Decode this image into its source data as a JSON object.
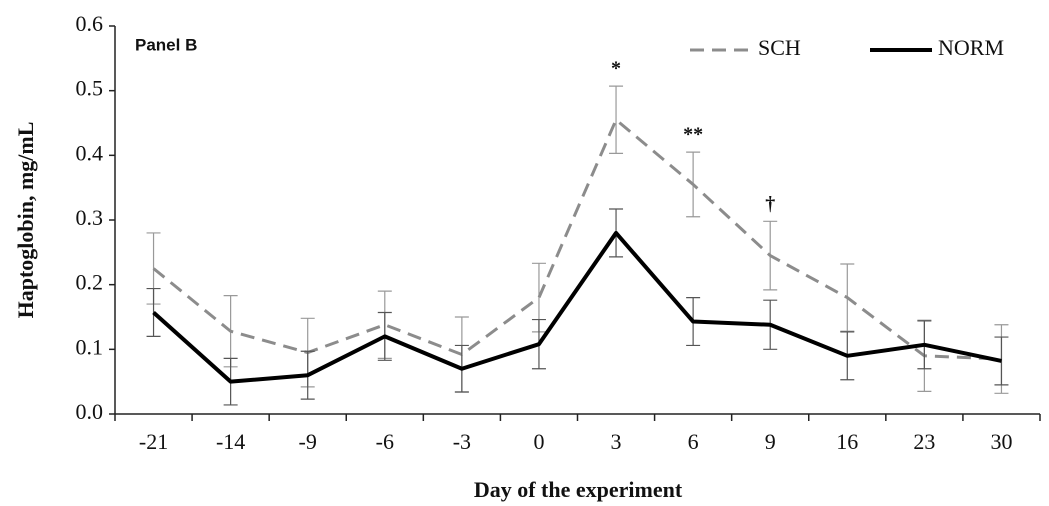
{
  "chart_data": {
    "type": "line",
    "panel_label": "Panel B",
    "x_label": "Day of the experiment",
    "y_label": "Haptoglobin, mg/mL",
    "categories": [
      "-21",
      "-14",
      "-9",
      "-6",
      "-3",
      "0",
      "3",
      "6",
      "9",
      "16",
      "23",
      "30"
    ],
    "series": [
      {
        "name": "SCH",
        "color": "#8c8c8c",
        "dashed": true,
        "values": [
          0.225,
          0.128,
          0.095,
          0.138,
          0.092,
          0.18,
          0.455,
          0.355,
          0.245,
          0.18,
          0.09,
          0.085
        ],
        "errors": [
          0.055,
          0.055,
          0.053,
          0.052,
          0.058,
          0.053,
          0.052,
          0.05,
          0.053,
          0.052,
          0.055,
          0.053
        ]
      },
      {
        "name": "NORM",
        "color": "#000000",
        "dashed": false,
        "values": [
          0.157,
          0.05,
          0.06,
          0.12,
          0.07,
          0.108,
          0.28,
          0.143,
          0.138,
          0.09,
          0.107,
          0.082
        ],
        "errors": [
          0.037,
          0.036,
          0.037,
          0.037,
          0.036,
          0.038,
          0.037,
          0.037,
          0.038,
          0.037,
          0.037,
          0.037
        ]
      }
    ],
    "annotations": [
      {
        "text": "*",
        "category": "3"
      },
      {
        "text": "**",
        "category": "6"
      },
      {
        "text": "†",
        "category": "9"
      }
    ],
    "ylim": [
      0,
      0.6
    ],
    "yticks": [
      {
        "value": 0,
        "label": "0.0"
      },
      0.1,
      0.2,
      0.3,
      0.4,
      0.5,
      0.6
    ],
    "legend": "top-right"
  }
}
